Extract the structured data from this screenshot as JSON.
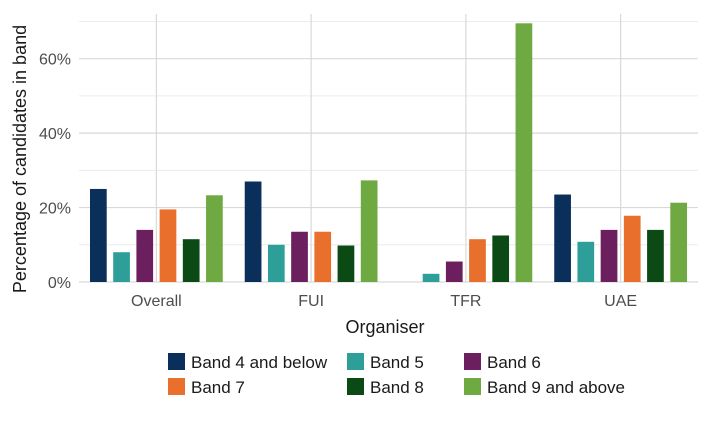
{
  "chart_data": {
    "type": "bar",
    "title": "",
    "xlabel": "Organiser",
    "ylabel": "Percentage of candidates in band",
    "categories": [
      "Overall",
      "FUI",
      "TFR",
      "UAE"
    ],
    "ylim": [
      0,
      72
    ],
    "yticks": [
      0,
      20,
      40,
      60
    ],
    "ytick_labels": [
      "0%",
      "20%",
      "40%",
      "60%"
    ],
    "grid": true,
    "legend_position": "bottom",
    "series": [
      {
        "name": "Band 4 and below",
        "color": "#0a2f5a",
        "values": [
          25,
          27,
          null,
          23.5
        ]
      },
      {
        "name": "Band 5",
        "color": "#2e9e99",
        "values": [
          8,
          10,
          2.2,
          10.8
        ]
      },
      {
        "name": "Band 6",
        "color": "#6b1f5e",
        "values": [
          14,
          13.5,
          5.5,
          14
        ]
      },
      {
        "name": "Band 7",
        "color": "#e86f2c",
        "values": [
          19.5,
          13.5,
          11.5,
          17.8
        ]
      },
      {
        "name": "Band 8",
        "color": "#0b4a14",
        "values": [
          11.5,
          9.8,
          12.5,
          14
        ]
      },
      {
        "name": "Band 9 and above",
        "color": "#6fa941",
        "values": [
          23.3,
          27.3,
          69.5,
          21.3
        ]
      }
    ]
  }
}
